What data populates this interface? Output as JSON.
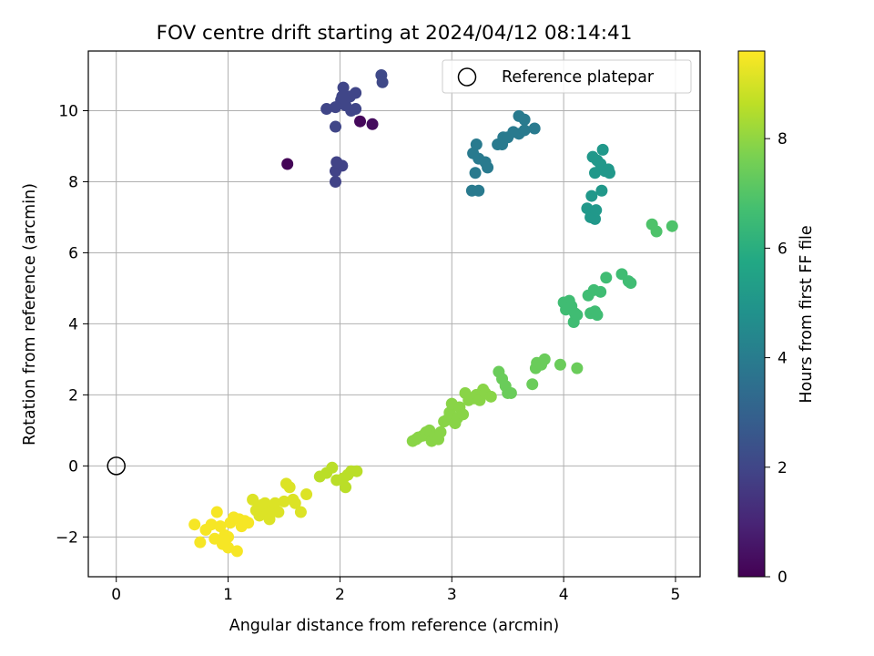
{
  "chart_data": {
    "type": "scatter",
    "title": "FOV centre drift starting at 2024/04/12 08:14:41",
    "xlabel": "Angular distance from reference (arcmin)",
    "ylabel": "Rotation from reference (arcmin)",
    "xlim": [
      -0.25,
      5.22
    ],
    "ylim": [
      -3.12,
      11.68
    ],
    "x_ticks": [
      0,
      1,
      2,
      3,
      4,
      5
    ],
    "y_ticks": [
      -2,
      0,
      2,
      4,
      6,
      8,
      10
    ],
    "grid": true,
    "legend": {
      "position": "top-right",
      "entries": [
        "Reference platepar"
      ]
    },
    "reference": {
      "x": 0,
      "y": 0,
      "label": "Reference platepar"
    },
    "colorbar": {
      "label": "Hours from first FF file",
      "min": 0,
      "max": 9.6,
      "ticks": [
        0,
        2,
        4,
        6,
        8
      ],
      "colormap": "viridis"
    },
    "points": [
      [
        1.53,
        8.5,
        0.1
      ],
      [
        2.18,
        9.7,
        0.2
      ],
      [
        2.29,
        9.62,
        0.3
      ],
      [
        1.96,
        8.0,
        1.9
      ],
      [
        1.96,
        8.3,
        1.9
      ],
      [
        2.02,
        8.45,
        1.9
      ],
      [
        1.97,
        8.55,
        1.9
      ],
      [
        1.96,
        9.55,
        2.0
      ],
      [
        1.88,
        10.05,
        2.0
      ],
      [
        1.96,
        10.1,
        2.0
      ],
      [
        2.01,
        10.3,
        2.0
      ],
      [
        2.03,
        10.65,
        2.0
      ],
      [
        2.05,
        10.15,
        2.0
      ],
      [
        2.1,
        10.0,
        2.0
      ],
      [
        2.14,
        10.05,
        2.0
      ],
      [
        2.14,
        10.5,
        2.0
      ],
      [
        2.09,
        10.4,
        2.0
      ],
      [
        2.02,
        10.4,
        2.0
      ],
      [
        2.37,
        11.0,
        2.1
      ],
      [
        2.38,
        10.8,
        2.1
      ],
      [
        3.18,
        7.75,
        3.9
      ],
      [
        3.24,
        7.75,
        3.9
      ],
      [
        3.21,
        8.25,
        3.9
      ],
      [
        3.19,
        8.8,
        3.9
      ],
      [
        3.22,
        9.05,
        3.9
      ],
      [
        3.24,
        8.65,
        3.9
      ],
      [
        3.3,
        8.55,
        3.9
      ],
      [
        3.32,
        8.4,
        3.9
      ],
      [
        3.41,
        9.05,
        3.9
      ],
      [
        3.45,
        9.05,
        3.9
      ],
      [
        3.46,
        9.25,
        3.9
      ],
      [
        3.5,
        9.25,
        3.9
      ],
      [
        3.55,
        9.4,
        3.9
      ],
      [
        3.6,
        9.35,
        3.9
      ],
      [
        3.6,
        9.85,
        3.9
      ],
      [
        3.65,
        9.45,
        3.9
      ],
      [
        3.65,
        9.75,
        3.9
      ],
      [
        3.74,
        9.5,
        3.9
      ],
      [
        4.21,
        7.25,
        5.1
      ],
      [
        4.24,
        7.0,
        5.1
      ],
      [
        4.25,
        7.6,
        5.1
      ],
      [
        4.28,
        6.95,
        5.1
      ],
      [
        4.29,
        7.2,
        5.1
      ],
      [
        4.28,
        8.25,
        5.1
      ],
      [
        4.26,
        8.7,
        5.1
      ],
      [
        4.3,
        8.6,
        5.1
      ],
      [
        4.33,
        8.5,
        5.1
      ],
      [
        4.34,
        7.75,
        5.1
      ],
      [
        4.35,
        8.9,
        5.1
      ],
      [
        4.37,
        8.3,
        5.1
      ],
      [
        4.4,
        8.35,
        5.1
      ],
      [
        4.41,
        8.25,
        5.1
      ],
      [
        4.0,
        4.6,
        6.6
      ],
      [
        4.02,
        4.4,
        6.6
      ],
      [
        4.05,
        4.65,
        6.6
      ],
      [
        4.07,
        4.5,
        6.6
      ],
      [
        4.09,
        4.05,
        6.6
      ],
      [
        4.1,
        4.3,
        6.6
      ],
      [
        4.12,
        4.25,
        6.6
      ],
      [
        4.22,
        4.8,
        6.6
      ],
      [
        4.24,
        4.3,
        6.6
      ],
      [
        4.27,
        4.95,
        6.6
      ],
      [
        4.28,
        4.35,
        6.6
      ],
      [
        4.3,
        4.25,
        6.6
      ],
      [
        4.33,
        4.9,
        6.6
      ],
      [
        4.38,
        5.3,
        6.6
      ],
      [
        4.52,
        5.4,
        6.6
      ],
      [
        4.58,
        5.2,
        6.6
      ],
      [
        4.6,
        5.15,
        6.6
      ],
      [
        4.79,
        6.8,
        6.9
      ],
      [
        4.83,
        6.6,
        6.9
      ],
      [
        4.97,
        6.75,
        6.9
      ],
      [
        3.42,
        2.65,
        7.4
      ],
      [
        3.45,
        2.45,
        7.4
      ],
      [
        3.48,
        2.25,
        7.4
      ],
      [
        3.5,
        2.05,
        7.4
      ],
      [
        3.53,
        2.05,
        7.4
      ],
      [
        3.72,
        2.3,
        7.4
      ],
      [
        3.75,
        2.75,
        7.4
      ],
      [
        3.76,
        2.9,
        7.4
      ],
      [
        3.8,
        2.85,
        7.4
      ],
      [
        3.83,
        3.0,
        7.4
      ],
      [
        3.97,
        2.85,
        7.4
      ],
      [
        4.12,
        2.75,
        7.4
      ],
      [
        2.65,
        0.7,
        7.9
      ],
      [
        2.68,
        0.75,
        7.9
      ],
      [
        2.7,
        0.8,
        7.9
      ],
      [
        2.74,
        0.85,
        7.9
      ],
      [
        2.77,
        0.95,
        7.9
      ],
      [
        2.8,
        1.0,
        7.9
      ],
      [
        2.82,
        0.7,
        7.9
      ],
      [
        2.85,
        0.85,
        7.9
      ],
      [
        2.88,
        0.75,
        7.9
      ],
      [
        2.9,
        0.95,
        7.9
      ],
      [
        2.93,
        1.25,
        7.9
      ],
      [
        2.96,
        1.3,
        7.9
      ],
      [
        2.98,
        1.5,
        7.9
      ],
      [
        3.0,
        1.4,
        7.9
      ],
      [
        3.0,
        1.75,
        7.9
      ],
      [
        3.03,
        1.2,
        7.9
      ],
      [
        3.05,
        1.35,
        7.9
      ],
      [
        3.07,
        1.65,
        7.9
      ],
      [
        3.1,
        1.45,
        7.9
      ],
      [
        3.12,
        2.05,
        7.9
      ],
      [
        3.15,
        1.85,
        7.9
      ],
      [
        3.2,
        1.9,
        7.9
      ],
      [
        3.22,
        2.0,
        7.9
      ],
      [
        3.25,
        1.85,
        7.9
      ],
      [
        3.28,
        2.15,
        7.9
      ],
      [
        3.3,
        2.05,
        7.9
      ],
      [
        3.35,
        1.95,
        7.9
      ],
      [
        1.82,
        -0.3,
        8.6
      ],
      [
        1.88,
        -0.2,
        8.6
      ],
      [
        1.93,
        -0.05,
        8.6
      ],
      [
        1.97,
        -0.4,
        8.6
      ],
      [
        2.03,
        -0.35,
        8.6
      ],
      [
        2.05,
        -0.6,
        8.6
      ],
      [
        2.07,
        -0.25,
        8.6
      ],
      [
        2.1,
        -0.15,
        8.6
      ],
      [
        2.15,
        -0.15,
        8.6
      ],
      [
        1.22,
        -0.95,
        9.1
      ],
      [
        1.25,
        -1.25,
        9.1
      ],
      [
        1.28,
        -1.4,
        9.1
      ],
      [
        1.3,
        -1.1,
        9.1
      ],
      [
        1.33,
        -1.05,
        9.1
      ],
      [
        1.35,
        -1.35,
        9.1
      ],
      [
        1.37,
        -1.5,
        9.1
      ],
      [
        1.4,
        -1.25,
        9.1
      ],
      [
        1.42,
        -1.05,
        9.1
      ],
      [
        1.45,
        -1.3,
        9.1
      ],
      [
        1.5,
        -1.0,
        9.1
      ],
      [
        1.52,
        -0.5,
        9.1
      ],
      [
        1.55,
        -0.6,
        9.1
      ],
      [
        1.58,
        -0.95,
        9.1
      ],
      [
        1.6,
        -1.05,
        9.1
      ],
      [
        1.65,
        -1.3,
        9.1
      ],
      [
        1.7,
        -0.8,
        9.1
      ],
      [
        0.7,
        -1.65,
        9.5
      ],
      [
        0.75,
        -2.15,
        9.5
      ],
      [
        0.8,
        -1.8,
        9.5
      ],
      [
        0.85,
        -1.65,
        9.5
      ],
      [
        0.88,
        -2.05,
        9.5
      ],
      [
        0.9,
        -1.3,
        9.5
      ],
      [
        0.93,
        -1.7,
        9.5
      ],
      [
        0.95,
        -2.2,
        9.5
      ],
      [
        0.97,
        -1.95,
        9.5
      ],
      [
        1.0,
        -2.3,
        9.5
      ],
      [
        1.02,
        -1.6,
        9.5
      ],
      [
        1.05,
        -1.45,
        9.5
      ],
      [
        1.08,
        -2.4,
        9.5
      ],
      [
        1.1,
        -1.5,
        9.5
      ],
      [
        1.12,
        -1.7,
        9.5
      ],
      [
        1.15,
        -1.55,
        9.5
      ],
      [
        1.18,
        -1.6,
        9.5
      ],
      [
        1.0,
        -2.0,
        9.5
      ],
      [
        0.97,
        -2.1,
        9.5
      ]
    ]
  }
}
